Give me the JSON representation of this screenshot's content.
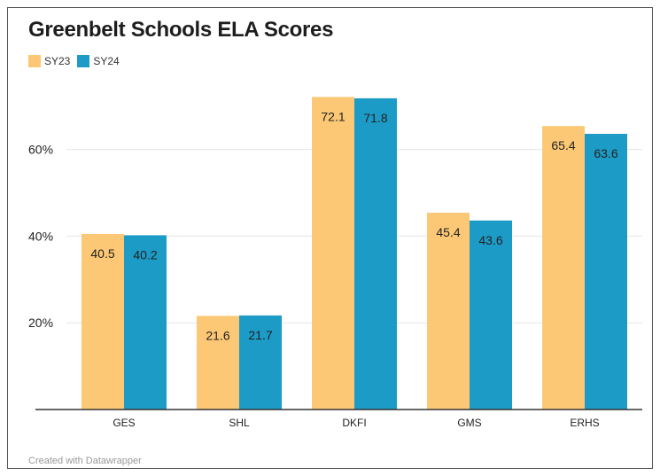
{
  "chart_data": {
    "type": "bar",
    "title": "Greenbelt Schools ELA Scores",
    "categories": [
      "GES",
      "SHL",
      "DKFI",
      "GMS",
      "ERHS"
    ],
    "series": [
      {
        "name": "SY23",
        "color": "#fdc875",
        "values": [
          40.5,
          21.6,
          72.1,
          45.4,
          65.4
        ]
      },
      {
        "name": "SY24",
        "color": "#1d9bc7",
        "values": [
          40.2,
          21.7,
          71.8,
          43.6,
          63.6
        ]
      }
    ],
    "yticks": [
      20,
      40,
      60
    ],
    "ytick_labels": [
      "20%",
      "40%",
      "60%"
    ],
    "ylim": [
      0,
      73
    ],
    "grid": true,
    "legend_position": "top-left",
    "footer": "Created with Datawrapper"
  }
}
